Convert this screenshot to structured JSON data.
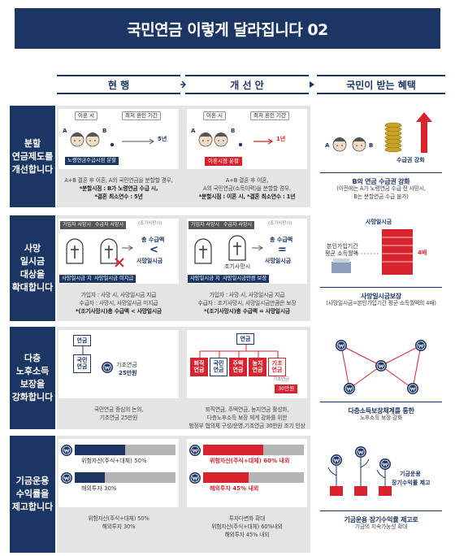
{
  "title": "국민연금 이렇게 달라집니다 02",
  "columns": [
    "현 행",
    "개 선 안",
    "국민이 받는 혜택"
  ],
  "rows": [
    {
      "label": [
        "분할",
        "연금제도를",
        "개선합니다"
      ],
      "current": {
        "items": [
          "이혼 시",
          "최저 혼인 기간",
          "A",
          "B",
          "5년",
          "노령연금수급시점 분할"
        ],
        "text": [
          "A+B 결혼 후 이혼, A의 국민연금을 분할할 경우,",
          "*분할시점 : B가 노령연금 수급 시,",
          "*결혼 최소연수 : 5년"
        ]
      },
      "improved": {
        "items": [
          "이혼 시",
          "최저 혼인 기간",
          "A",
          "B",
          "1년",
          "이혼시점 분할"
        ],
        "text": [
          "A+B 결혼 후 이혼,",
          "A의 국민연금(소득이력)을 분할할 경우,",
          "*분할시점 : 이혼 시, *결혼 최소연수 : 1년"
        ]
      },
      "benefit": {
        "items": [
          "A",
          "B",
          "수급권 강화"
        ],
        "text": [
          "B의 연금 수급권 강화",
          "(이전에는 A가 노령연금 수급 전 사망시,",
          "B는 분할연금 수급 불가)"
        ]
      }
    },
    {
      "label": [
        "사망",
        "일시금",
        "대상을",
        "확대합니다"
      ],
      "current": {
        "items": [
          "가입자 사망시",
          "수급자 사망시",
          "(조기사망시)",
          "총 수급액",
          "<",
          "사망일시금",
          "사망일시금 지급",
          "사망일시금 미지급"
        ],
        "text": [
          "가입자 : 사망 시, 사망일시금 지급",
          "수급자 : 사망시, 사망일시금 미지급",
          "*(조기사망시)총 수급액 < 사망일시금"
        ]
      },
      "improved": {
        "items": [
          "가입자 사망시",
          "수급자 사망시",
          "(조기사망시)",
          "총 수급액",
          "=",
          "사망일시금",
          "조기사망시",
          "사망일시금 지급",
          "사망일시금만큼 보장"
        ],
        "text": [
          "가입자 : 사망 시, 사망일시금 지급",
          "수급자 : 조기사망시, 사망일시금만큼은 보장",
          "*(조기사망시)총 수급액 = 사망일시금"
        ]
      },
      "benefit": {
        "items": [
          "사망일시금",
          "본인가입기간",
          "평균 소득월액",
          "4배"
        ],
        "text": [
          "사망일시금보장",
          "(사망일시금=본인가입기간 평균 소득월액의 4배)"
        ]
      }
    },
    {
      "label": [
        "다층",
        "노후소득",
        "보장을",
        "강화합니다"
      ],
      "current": {
        "items": [
          "연금",
          "국민연금",
          "기초연금",
          "25만원"
        ],
        "text": [
          "국민연금 중심의 논의,",
          "기초연금 25만원"
        ]
      },
      "improved": {
        "items": [
          "연금",
          "퇴직연금",
          "국민연금",
          "주택연금",
          "농지연금",
          "기초연금",
          "기초연금",
          "30만원"
        ],
        "text": [
          "퇴직연금, 주택연금, 농지연금 활성화,",
          "다층노후소득 보장 체계 강화를 위한",
          "범정부 협의체 구성/운영,기초연금 30만원 조기 인상"
        ]
      },
      "benefit": {
        "items": [],
        "text": [
          "다층소득보장체계를 통한",
          "노후소득 보장 강화"
        ]
      }
    },
    {
      "label": [
        "기금운용",
        "수익률을",
        "제고합니다"
      ],
      "current": {
        "bars": [
          {
            "label": "위험자산(주식+대체) 50%",
            "value": 50
          },
          {
            "label": "해외투자 30%",
            "value": 30
          }
        ],
        "text": [
          "위험자산(주식+대체) 50%",
          "해외투자 30%"
        ]
      },
      "improved": {
        "bars": [
          {
            "label": "위험자산(주식+대체) 60% 내외",
            "value": 60
          },
          {
            "label": "해외투자 45% 내외",
            "value": 45
          }
        ],
        "text": [
          "투자다변화 확대",
          "위험자산(주식+대체) 60%내외",
          "해외투자 45% 내외"
        ]
      },
      "benefit": {
        "items": [
          "기금운용",
          "장기수익률 제고"
        ],
        "text": [
          "기금운용 장기수익률 제고로",
          "기금의 지속가능성 확대"
        ]
      }
    }
  ]
}
